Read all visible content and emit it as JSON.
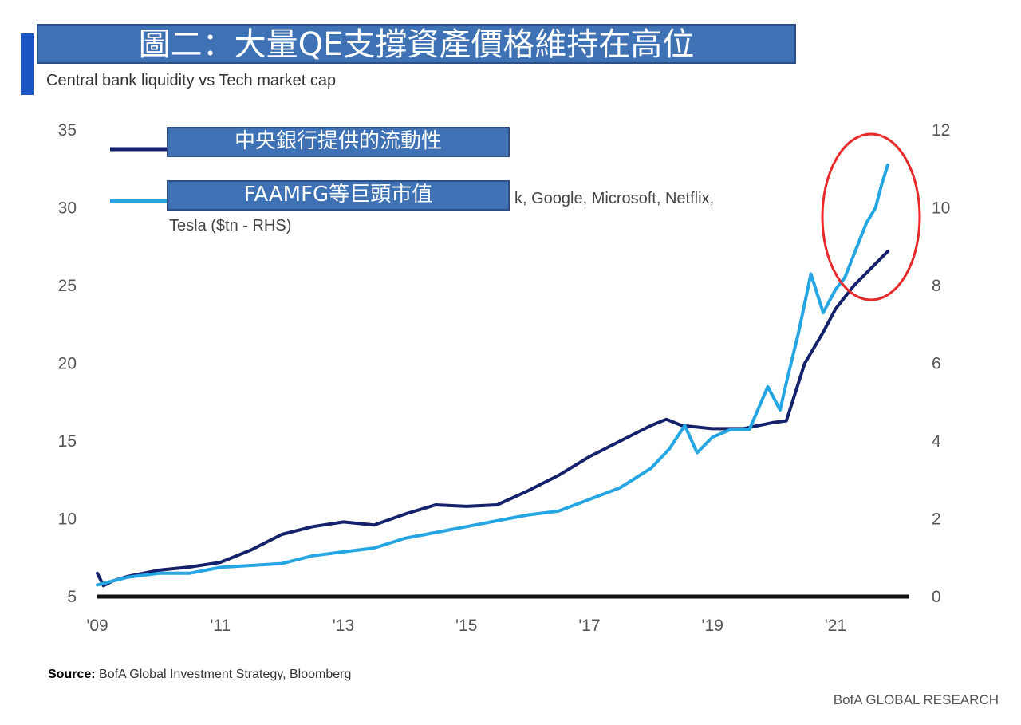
{
  "header": {
    "title": "圖二：大量QE支撐資產價格維持在高位",
    "subtitle": "Central bank liquidity vs Tech market cap"
  },
  "footer": {
    "source_label": "Source:",
    "source_text": "BofA Global Investment Strategy, Bloomberg",
    "brand": "BofA GLOBAL RESEARCH"
  },
  "colors": {
    "liquidity": "#16216b",
    "techcap": "#25a6e3",
    "highlight_circle": "#e8292a",
    "axis": "#111111"
  },
  "chart_data": {
    "type": "line",
    "x_ticks": [
      "'09",
      "'11",
      "'13",
      "'15",
      "'17",
      "'19",
      "'21"
    ],
    "y_left": {
      "ticks": [
        "35",
        "30",
        "25",
        "20",
        "15",
        "10",
        "5"
      ],
      "range": [
        5,
        35
      ]
    },
    "y_right": {
      "ticks": [
        "12",
        "10",
        "8",
        "6",
        "4",
        "2",
        "0"
      ],
      "range": [
        0,
        12
      ]
    },
    "legend": [
      {
        "label": "中央銀行提供的流動性",
        "note": ""
      },
      {
        "label": "FAAMFG等巨頭市值",
        "note": "k, Google, Microsoft, Netflix,",
        "note2": "Tesla ($tn - RHS)"
      }
    ],
    "series": [
      {
        "axis": "left",
        "x": [
          2009.0,
          2009.1,
          2009.25,
          2009.5,
          2010.0,
          2010.5,
          2011.0,
          2011.5,
          2012.0,
          2012.5,
          2013.0,
          2013.5,
          2014.0,
          2014.5,
          2015.0,
          2015.5,
          2016.0,
          2016.5,
          2017.0,
          2017.5,
          2018.0,
          2018.25,
          2018.5,
          2019.0,
          2019.5,
          2020.0,
          2020.2,
          2020.5,
          2020.8,
          2021.0,
          2021.3,
          2021.6,
          2021.85
        ],
        "y": [
          6.5,
          5.7,
          6.0,
          6.3,
          6.7,
          6.9,
          7.2,
          8.0,
          9.0,
          9.5,
          9.8,
          9.6,
          10.3,
          10.9,
          10.8,
          10.9,
          11.8,
          12.8,
          14.0,
          15.0,
          16.0,
          16.4,
          16.0,
          15.8,
          15.8,
          16.2,
          16.3,
          20.0,
          22.0,
          23.5,
          25.0,
          26.2,
          27.2
        ]
      },
      {
        "axis": "right",
        "x": [
          2009.0,
          2009.25,
          2009.5,
          2010.0,
          2010.5,
          2011.0,
          2011.5,
          2012.0,
          2012.5,
          2013.0,
          2013.5,
          2014.0,
          2014.5,
          2015.0,
          2015.5,
          2016.0,
          2016.5,
          2017.0,
          2017.5,
          2018.0,
          2018.3,
          2018.55,
          2018.75,
          2019.0,
          2019.3,
          2019.6,
          2019.9,
          2020.1,
          2020.2,
          2020.4,
          2020.6,
          2020.8,
          2021.0,
          2021.15,
          2021.3,
          2021.5,
          2021.65,
          2021.75,
          2021.85
        ],
        "y": [
          0.3,
          0.4,
          0.5,
          0.6,
          0.6,
          0.75,
          0.8,
          0.85,
          1.05,
          1.15,
          1.25,
          1.5,
          1.65,
          1.8,
          1.95,
          2.1,
          2.2,
          2.5,
          2.8,
          3.3,
          3.8,
          4.4,
          3.7,
          4.1,
          4.3,
          4.3,
          5.4,
          4.8,
          5.5,
          6.8,
          8.3,
          7.3,
          7.9,
          8.2,
          8.8,
          9.6,
          10.0,
          10.6,
          11.1
        ]
      }
    ],
    "annotations": [
      {
        "type": "circle",
        "around": "2021 peak"
      }
    ]
  }
}
